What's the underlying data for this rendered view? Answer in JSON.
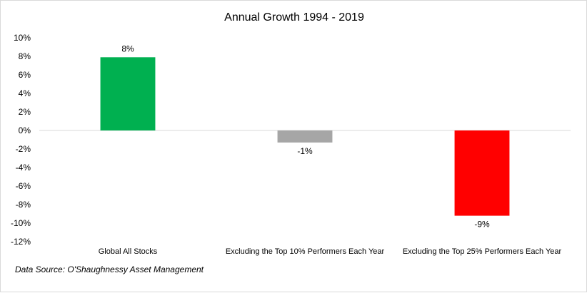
{
  "chart_data": {
    "type": "bar",
    "title": "Annual Growth 1994 - 2019",
    "categories": [
      "Global All Stocks",
      "Excluding the Top 10% Performers Each Year",
      "Excluding the Top 25% Performers Each Year"
    ],
    "values": [
      7.9,
      -1.3,
      -9.2
    ],
    "data_labels": [
      "8%",
      "-1%",
      "-9%"
    ],
    "bar_colors": [
      "#00b050",
      "#a6a6a6",
      "#ff0000"
    ],
    "ylim": [
      -12,
      10
    ],
    "yticks": [
      10,
      8,
      6,
      4,
      2,
      0,
      -2,
      -4,
      -6,
      -8,
      -10,
      -12
    ],
    "ytick_labels": [
      "10%",
      "8%",
      "6%",
      "4%",
      "2%",
      "0%",
      "-2%",
      "-4%",
      "-6%",
      "-8%",
      "-10%",
      "-12%"
    ],
    "xlabel": "",
    "ylabel": "",
    "grid": false,
    "legend": "none"
  },
  "source_note": "Data Source: O'Shaughnessy Asset Management",
  "colors": {
    "axis_line": "#d9d9d9",
    "border": "#d9d9d9"
  }
}
